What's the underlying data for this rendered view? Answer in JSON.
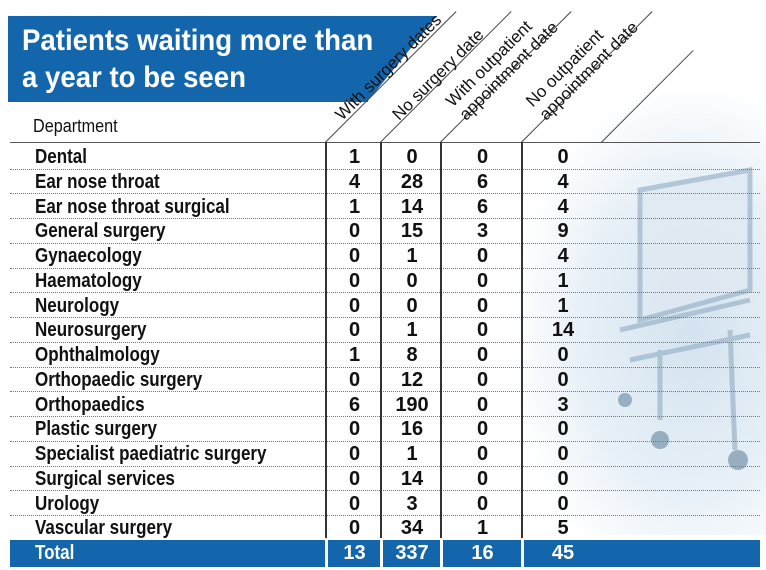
{
  "title": "Patients waiting more than a year to be seen",
  "chart_data": {
    "type": "table",
    "title": "Patients waiting more than a year to be seen",
    "row_header": "Department",
    "columns": [
      "With surgery dates",
      "No surgery date",
      "With outpatient appointment date",
      "No outpatient appointment date"
    ],
    "column_lines": [
      [
        "With surgery dates"
      ],
      [
        "No surgery date"
      ],
      [
        "With outpatient",
        "appointment date"
      ],
      [
        "No outpatient",
        "appointment date"
      ]
    ],
    "rows": [
      {
        "department": "Dental",
        "values": [
          1,
          0,
          0,
          0
        ]
      },
      {
        "department": "Ear nose throat",
        "values": [
          4,
          28,
          6,
          4
        ]
      },
      {
        "department": "Ear nose throat surgical",
        "values": [
          1,
          14,
          6,
          4
        ]
      },
      {
        "department": "General surgery",
        "values": [
          0,
          15,
          3,
          9
        ]
      },
      {
        "department": "Gynaecology",
        "values": [
          0,
          1,
          0,
          4
        ]
      },
      {
        "department": "Haematology",
        "values": [
          0,
          0,
          0,
          1
        ]
      },
      {
        "department": "Neurology",
        "values": [
          0,
          0,
          0,
          1
        ]
      },
      {
        "department": "Neurosurgery",
        "values": [
          0,
          1,
          0,
          14
        ]
      },
      {
        "department": "Ophthalmology",
        "values": [
          1,
          8,
          0,
          0
        ]
      },
      {
        "department": "Orthopaedic surgery",
        "values": [
          0,
          12,
          0,
          0
        ]
      },
      {
        "department": "Orthopaedics",
        "values": [
          6,
          190,
          0,
          3
        ]
      },
      {
        "department": "Plastic surgery",
        "values": [
          0,
          16,
          0,
          0
        ]
      },
      {
        "department": "Specialist paediatric surgery",
        "values": [
          0,
          1,
          0,
          0
        ]
      },
      {
        "department": "Surgical services",
        "values": [
          0,
          14,
          0,
          0
        ]
      },
      {
        "department": "Urology",
        "values": [
          0,
          3,
          0,
          0
        ]
      },
      {
        "department": "Vascular surgery",
        "values": [
          0,
          34,
          1,
          5
        ]
      }
    ],
    "total": {
      "label": "Total",
      "values": [
        13,
        337,
        16,
        45
      ]
    }
  },
  "colors": {
    "accent": "#1466ac",
    "text": "#111111",
    "total_text": "#ffffff"
  }
}
